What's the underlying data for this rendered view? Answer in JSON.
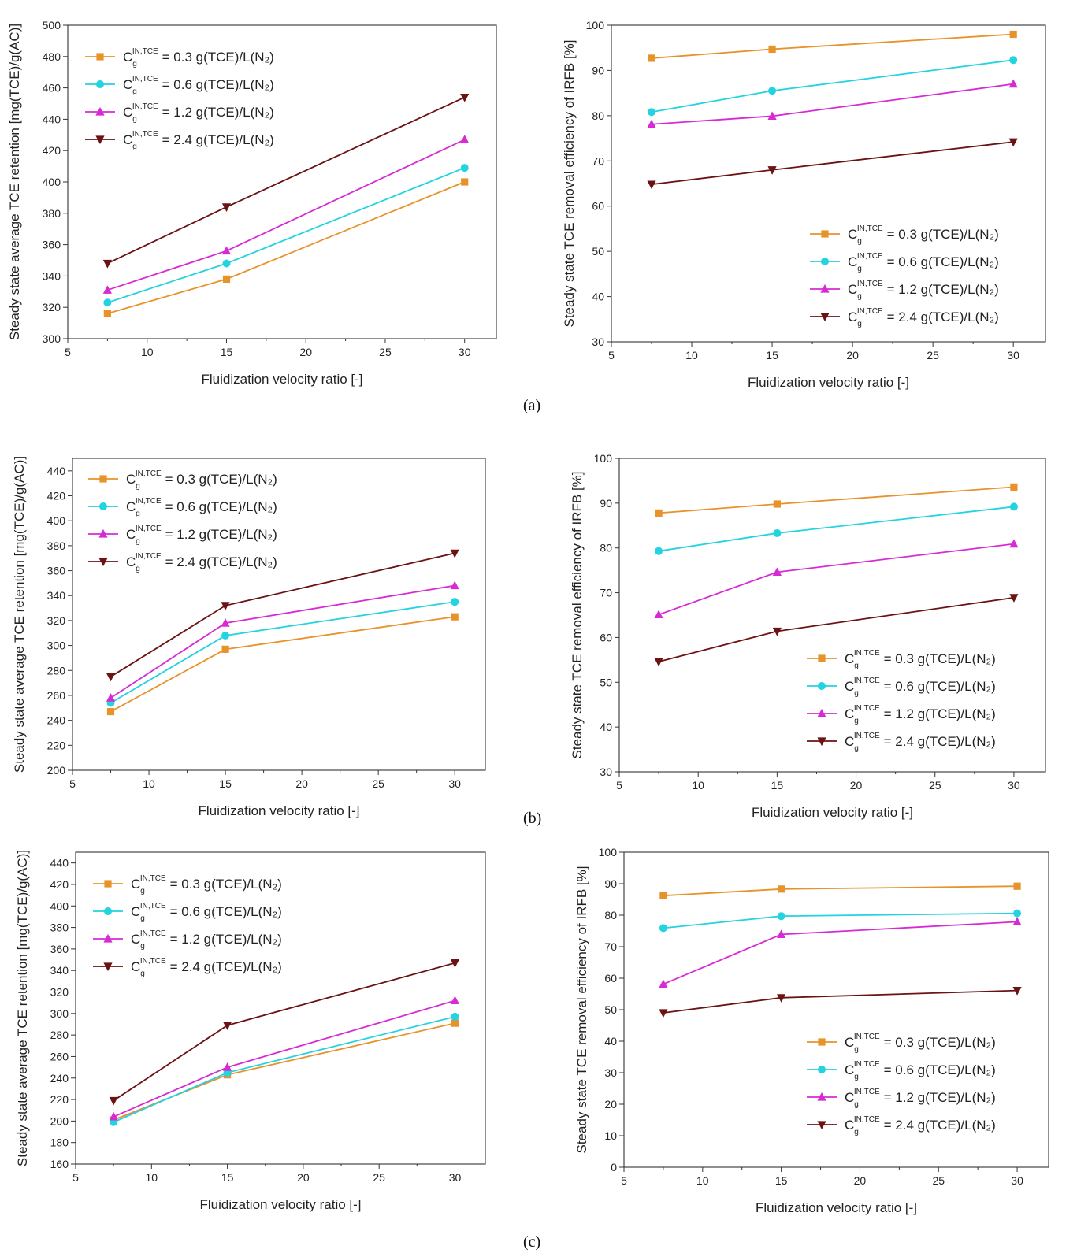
{
  "figure": {
    "panel_labels": [
      "(a)",
      "(b)",
      "(c)"
    ]
  },
  "common": {
    "xlabel": "Fluidization velocity ratio [-]",
    "ylabel_retention": "Steady state average TCE retention [mg(TCE)/g(AC)]",
    "ylabel_efficiency": "Steady state TCE removal efficiency of IRFB [%]",
    "legend_prefix": "C",
    "legend_sub": "g",
    "legend_sup": "IN,TCE",
    "colors": {
      "0.3": "#e8922a",
      "0.6": "#22d3e0",
      "1.2": "#d72ad4",
      "2.4": "#6b1212"
    }
  },
  "chart_data": [
    {
      "id": "a-retention",
      "type": "line",
      "xlabel": "Fluidization velocity ratio [-]",
      "ylabel": "Steady state average TCE retention [mg(TCE)/g(AC)]",
      "xlim": [
        5,
        32
      ],
      "ylim": [
        300,
        500
      ],
      "xticks": [
        5,
        10,
        15,
        20,
        25,
        30
      ],
      "yticks": [
        300,
        320,
        340,
        360,
        380,
        400,
        420,
        440,
        460,
        480,
        500
      ],
      "legend_position": "top-left",
      "grid": false,
      "x": [
        7.5,
        15,
        30
      ],
      "series": [
        {
          "name": "= 0.3 g(TCE)/L(N₂)",
          "marker": "square",
          "color": "#e8922a",
          "values": [
            316,
            338,
            400
          ]
        },
        {
          "name": "= 0.6 g(TCE)/L(N₂)",
          "marker": "circle",
          "color": "#22d3e0",
          "values": [
            323,
            348,
            409
          ]
        },
        {
          "name": "= 1.2 g(TCE)/L(N₂)",
          "marker": "triangle-up",
          "color": "#d72ad4",
          "values": [
            331,
            356,
            427
          ]
        },
        {
          "name": "= 2.4 g(TCE)/L(N₂)",
          "marker": "triangle-down",
          "color": "#6b1212",
          "values": [
            348,
            384,
            454
          ]
        }
      ]
    },
    {
      "id": "a-efficiency",
      "type": "line",
      "xlabel": "Fluidization velocity ratio [-]",
      "ylabel": "Steady state TCE removal efficiency of IRFB [%]",
      "xlim": [
        5,
        32
      ],
      "ylim": [
        30,
        100
      ],
      "xticks": [
        5,
        10,
        15,
        20,
        25,
        30
      ],
      "yticks": [
        30,
        40,
        50,
        60,
        70,
        80,
        90,
        100
      ],
      "legend_position": "bottom-right",
      "grid": false,
      "x": [
        7.5,
        15,
        30
      ],
      "series": [
        {
          "name": "= 0.3 g(TCE)/L(N₂)",
          "marker": "square",
          "color": "#e8922a",
          "values": [
            92.7,
            94.7,
            98
          ]
        },
        {
          "name": "= 0.6 g(TCE)/L(N₂)",
          "marker": "circle",
          "color": "#22d3e0",
          "values": [
            80.8,
            85.5,
            92.3
          ]
        },
        {
          "name": "= 1.2 g(TCE)/L(N₂)",
          "marker": "triangle-up",
          "color": "#d72ad4",
          "values": [
            78.1,
            79.9,
            87
          ]
        },
        {
          "name": "= 2.4 g(TCE)/L(N₂)",
          "marker": "triangle-down",
          "color": "#6b1212",
          "values": [
            64.8,
            68,
            74.2
          ]
        }
      ]
    },
    {
      "id": "b-retention",
      "type": "line",
      "xlabel": "Fluidization velocity ratio [-]",
      "ylabel": "Steady state average TCE retention [mg(TCE)/g(AC)]",
      "xlim": [
        5,
        32
      ],
      "ylim": [
        200,
        450
      ],
      "xticks": [
        5,
        10,
        15,
        20,
        25,
        30
      ],
      "yticks": [
        200,
        220,
        240,
        260,
        280,
        300,
        320,
        340,
        360,
        380,
        400,
        420,
        440
      ],
      "legend_position": "top-left",
      "grid": false,
      "x": [
        7.5,
        15,
        30
      ],
      "series": [
        {
          "name": "= 0.3 g(TCE)/L(N₂)",
          "marker": "square",
          "color": "#e8922a",
          "values": [
            247,
            297,
            323
          ]
        },
        {
          "name": "= 0.6 g(TCE)/L(N₂)",
          "marker": "circle",
          "color": "#22d3e0",
          "values": [
            254,
            308,
            335
          ]
        },
        {
          "name": "= 1.2 g(TCE)/L(N₂)",
          "marker": "triangle-up",
          "color": "#d72ad4",
          "values": [
            258,
            318,
            348
          ]
        },
        {
          "name": "= 2.4 g(TCE)/L(N₂)",
          "marker": "triangle-down",
          "color": "#6b1212",
          "values": [
            275,
            332,
            374
          ]
        }
      ]
    },
    {
      "id": "b-efficiency",
      "type": "line",
      "xlabel": "Fluidization velocity ratio [-]",
      "ylabel": "Steady state TCE removal efficiency of IRFB [%]",
      "xlim": [
        5,
        32
      ],
      "ylim": [
        30,
        100
      ],
      "xticks": [
        5,
        10,
        15,
        20,
        25,
        30
      ],
      "yticks": [
        30,
        40,
        50,
        60,
        70,
        80,
        90,
        100
      ],
      "legend_position": "bottom-right",
      "grid": false,
      "x": [
        7.5,
        15,
        30
      ],
      "series": [
        {
          "name": "= 0.3 g(TCE)/L(N₂)",
          "marker": "square",
          "color": "#e8922a",
          "values": [
            87.8,
            89.8,
            93.6
          ]
        },
        {
          "name": "= 0.6 g(TCE)/L(N₂)",
          "marker": "circle",
          "color": "#22d3e0",
          "values": [
            79.3,
            83.3,
            89.2
          ]
        },
        {
          "name": "= 1.2 g(TCE)/L(N₂)",
          "marker": "triangle-up",
          "color": "#d72ad4",
          "values": [
            65.1,
            74.6,
            80.9
          ]
        },
        {
          "name": "= 2.4 g(TCE)/L(N₂)",
          "marker": "triangle-down",
          "color": "#6b1212",
          "values": [
            54.6,
            61.4,
            68.9
          ]
        }
      ]
    },
    {
      "id": "c-retention",
      "type": "line",
      "xlabel": "Fluidization velocity ratio [-]",
      "ylabel": "Steady state average TCE retention [mg(TCE)/g(AC)]",
      "xlim": [
        5,
        32
      ],
      "ylim": [
        160,
        450
      ],
      "xticks": [
        5,
        10,
        15,
        20,
        25,
        30
      ],
      "yticks": [
        160,
        180,
        200,
        220,
        240,
        260,
        280,
        300,
        320,
        340,
        360,
        380,
        400,
        420,
        440
      ],
      "legend_position": "top-left",
      "grid": false,
      "x": [
        7.5,
        15,
        30
      ],
      "series": [
        {
          "name": "= 0.3 g(TCE)/L(N₂)",
          "marker": "square",
          "color": "#e8922a",
          "values": [
            201,
            243,
            291
          ]
        },
        {
          "name": "= 0.6 g(TCE)/L(N₂)",
          "marker": "circle",
          "color": "#22d3e0",
          "values": [
            199,
            245,
            297
          ]
        },
        {
          "name": "= 1.2 g(TCE)/L(N₂)",
          "marker": "triangle-up",
          "color": "#d72ad4",
          "values": [
            204,
            250,
            312
          ]
        },
        {
          "name": "= 2.4 g(TCE)/L(N₂)",
          "marker": "triangle-down",
          "color": "#6b1212",
          "values": [
            219,
            289,
            347
          ]
        }
      ]
    },
    {
      "id": "c-efficiency",
      "type": "line",
      "xlabel": "Fluidization velocity ratio [-]",
      "ylabel": "Steady state TCE removal efficiency of IRFB [%]",
      "xlim": [
        5,
        32
      ],
      "ylim": [
        0,
        100
      ],
      "xticks": [
        5,
        10,
        15,
        20,
        25,
        30
      ],
      "yticks": [
        0,
        10,
        20,
        30,
        40,
        50,
        60,
        70,
        80,
        90,
        100
      ],
      "legend_position": "bottom-right",
      "grid": false,
      "x": [
        7.5,
        15,
        30
      ],
      "series": [
        {
          "name": "= 0.3 g(TCE)/L(N₂)",
          "marker": "square",
          "color": "#e8922a",
          "values": [
            86.2,
            88.3,
            89.2
          ]
        },
        {
          "name": "= 0.6 g(TCE)/L(N₂)",
          "marker": "circle",
          "color": "#22d3e0",
          "values": [
            75.9,
            79.7,
            80.6
          ]
        },
        {
          "name": "= 1.2 g(TCE)/L(N₂)",
          "marker": "triangle-up",
          "color": "#d72ad4",
          "values": [
            58.1,
            73.9,
            77.9
          ]
        },
        {
          "name": "= 2.4 g(TCE)/L(N₂)",
          "marker": "triangle-down",
          "color": "#6b1212",
          "values": [
            49,
            53.8,
            56.1
          ]
        }
      ]
    }
  ]
}
